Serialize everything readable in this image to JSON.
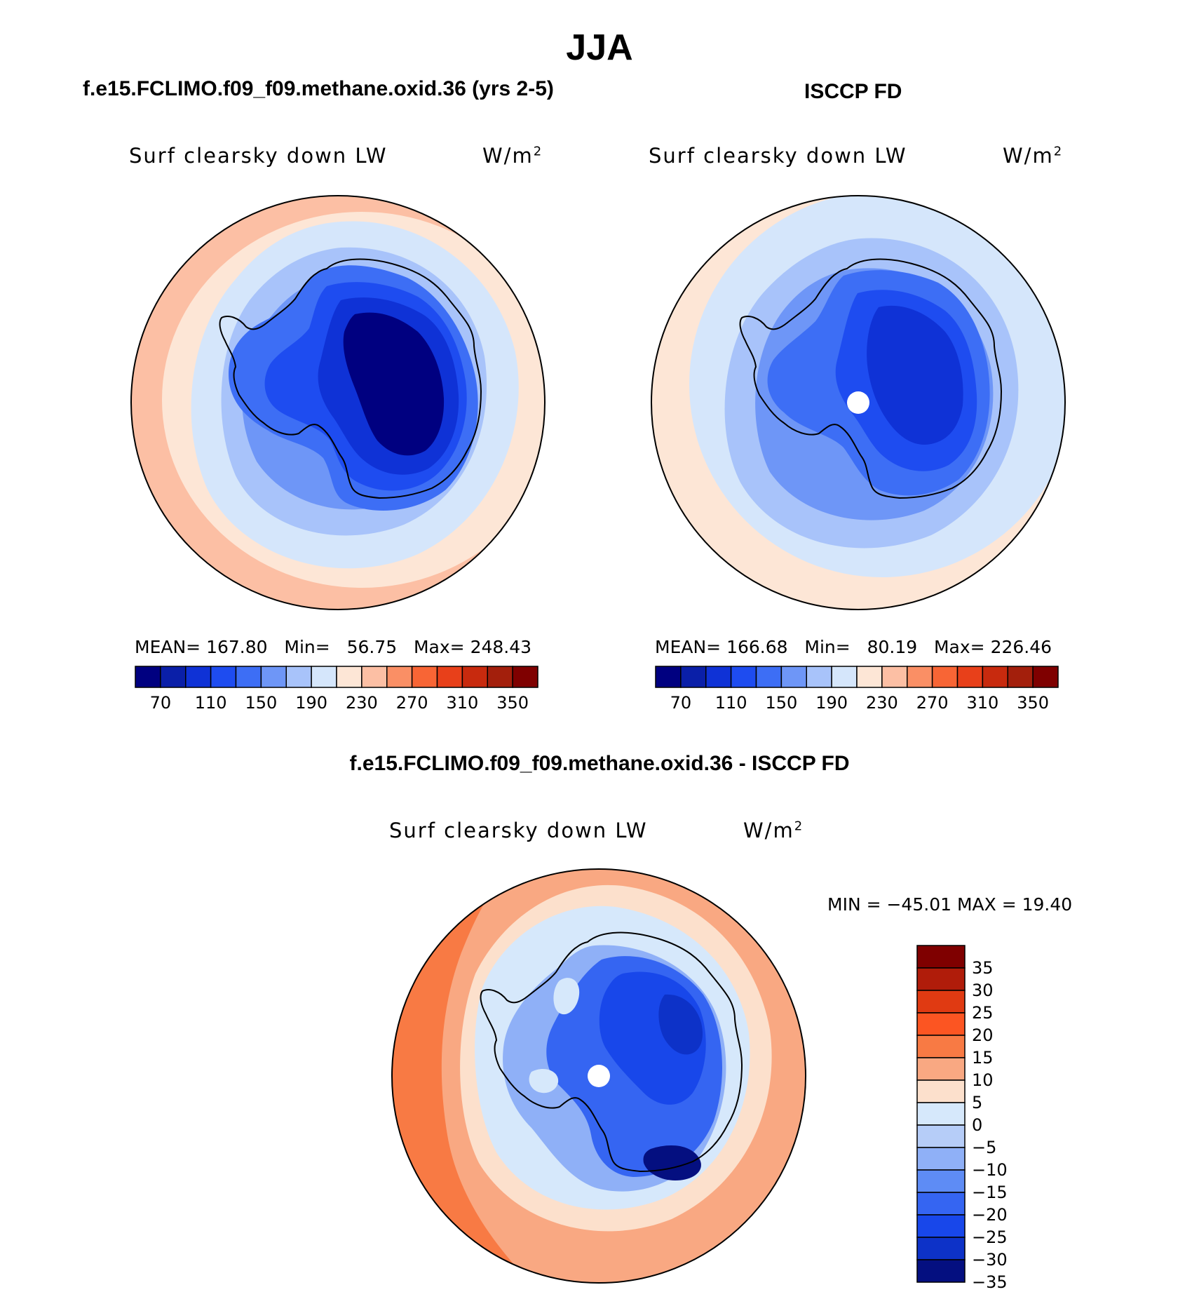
{
  "figure": {
    "title": "JJA",
    "bottom_title": "f.e15.FCLIMO.f09_f09.methane.oxid.36 - ISCCP FD"
  },
  "panels": {
    "model": {
      "title": "f.e15.FCLIMO.f09_f09.methane.oxid.36 (yrs 2-5)",
      "variable": "Surf clearsky down LW",
      "units_base": "W/m",
      "units_exp": "2",
      "mean_label": "MEAN=",
      "mean": "167.80",
      "min_label": "Min=",
      "min": "56.75",
      "max_label": "Max=",
      "max": "248.43"
    },
    "obs": {
      "title": "ISCCP FD",
      "variable": "Surf clearsky down LW",
      "units_base": "W/m",
      "units_exp": "2",
      "mean_label": "MEAN=",
      "mean": "166.68",
      "min_label": "Min=",
      "min": "80.19",
      "max_label": "Max=",
      "max": "226.46"
    },
    "diff": {
      "variable": "Surf clearsky down LW",
      "units_base": "W/m",
      "units_exp": "2",
      "minmax_text": "MIN = −45.01 MAX =   19.40"
    }
  },
  "colorbar_abs": {
    "colors": [
      "#000080",
      "#0a1fa8",
      "#0f32d6",
      "#1e4cf0",
      "#3d6ef5",
      "#6e96f7",
      "#a8c3fa",
      "#d5e6fb",
      "#fde6d6",
      "#fcbfa4",
      "#fa8f65",
      "#f86535",
      "#e8401a",
      "#c82a0e",
      "#a31f0c",
      "#7f0000"
    ],
    "labels": [
      "70",
      "110",
      "150",
      "190",
      "230",
      "270",
      "310",
      "350"
    ]
  },
  "colorbar_diff": {
    "colors": [
      "#7f0000",
      "#b01c0a",
      "#e03a12",
      "#fc5522",
      "#f87a44",
      "#f9a882",
      "#fce0cc",
      "#d6e8fb",
      "#b6cdf8",
      "#8fb0f7",
      "#5e8cf5",
      "#3565f2",
      "#1847ea",
      "#0d32c8",
      "#040f80"
    ],
    "labels": [
      "35",
      "30",
      "25",
      "20",
      "15",
      "10",
      "5",
      "0",
      "−5",
      "−10",
      "−15",
      "−20",
      "−25",
      "−30",
      "−35"
    ]
  },
  "map_colors": {
    "ocean_outer": "#fcbfa4",
    "ocean_warm": "#fde6d6",
    "ocean_mid": "#d5e6fb",
    "ice_edge": "#a8c3fa",
    "coast_blue": "#6e96f7",
    "coast_blue2": "#3d6ef5",
    "land_blue": "#1e4cf0",
    "plateau": "#0f32d6",
    "plateau_dark": "#000080",
    "diff_outer": "#f87a44",
    "diff_mid": "#f9a882",
    "diff_pale": "#fce0cc"
  }
}
